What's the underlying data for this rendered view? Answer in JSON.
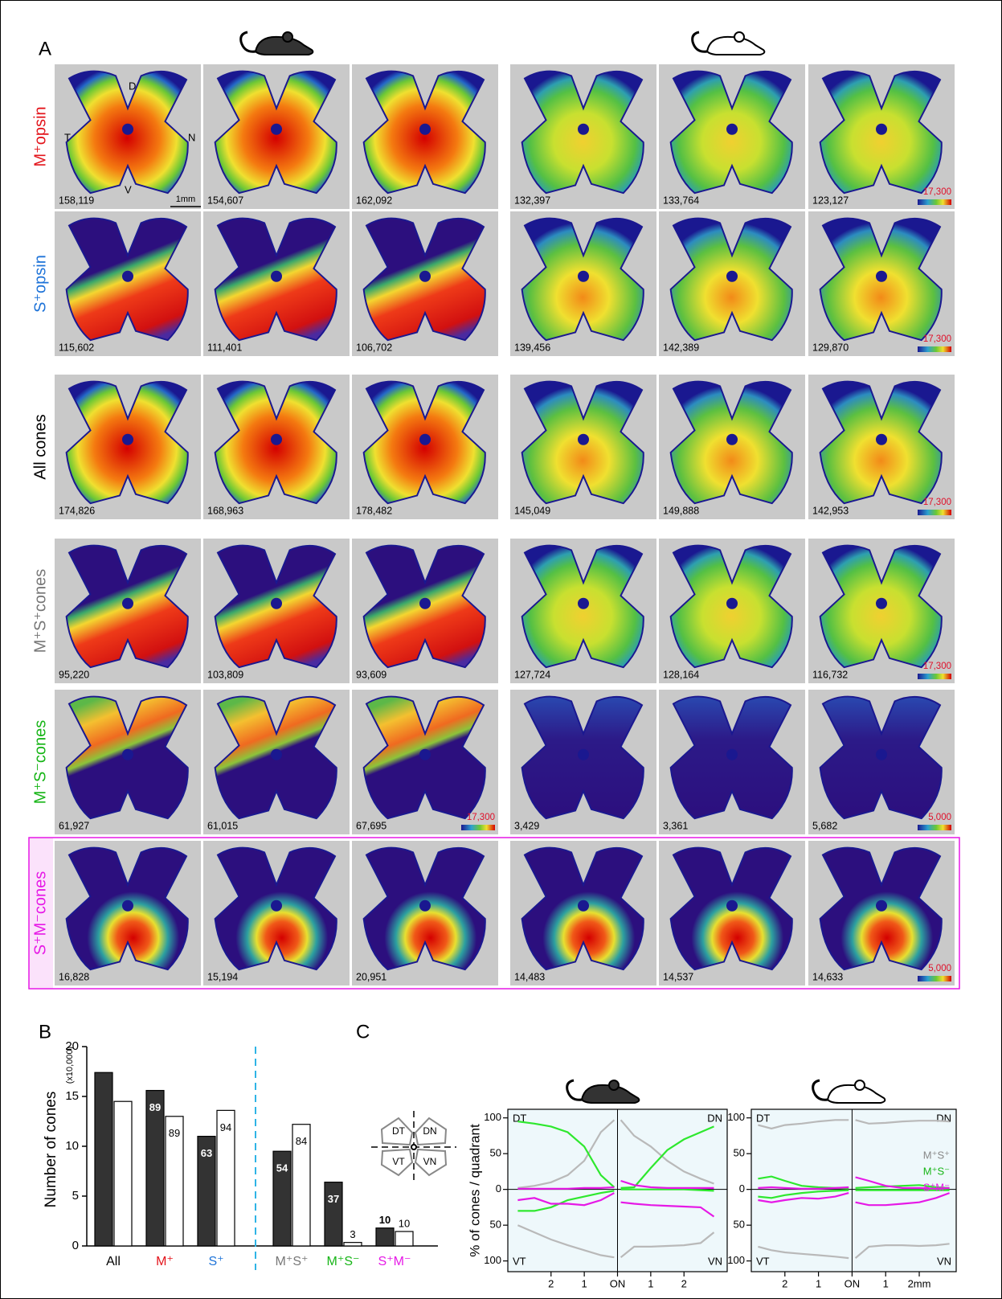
{
  "panel_a": {
    "label": "A",
    "orientation": {
      "d": "D",
      "t": "T",
      "n": "N",
      "v": "V",
      "scale": "1mm"
    },
    "rows": [
      {
        "label": "M⁺opsin",
        "color": "#e3141b",
        "tiles": [
          {
            "count": "158,119"
          },
          {
            "count": "154,607"
          },
          {
            "count": "162,092"
          },
          {
            "count": "132,397"
          },
          {
            "count": "133,764"
          },
          {
            "count": "123,127",
            "scale": "17,300"
          }
        ]
      },
      {
        "label": "S⁺opsin",
        "color": "#1e73d8",
        "tiles": [
          {
            "count": "115,602"
          },
          {
            "count": "111,401"
          },
          {
            "count": "106,702"
          },
          {
            "count": "139,456"
          },
          {
            "count": "142,389"
          },
          {
            "count": "129,870",
            "scale": "17,300"
          }
        ]
      },
      {
        "label": "All cones",
        "color": "#000000",
        "tiles": [
          {
            "count": "174,826"
          },
          {
            "count": "168,963"
          },
          {
            "count": "178,482"
          },
          {
            "count": "145,049"
          },
          {
            "count": "149,888"
          },
          {
            "count": "142,953",
            "scale": "17,300"
          }
        ]
      },
      {
        "label": "M⁺S⁺cones",
        "color": "#777777",
        "tiles": [
          {
            "count": "95,220"
          },
          {
            "count": "103,809"
          },
          {
            "count": "93,609"
          },
          {
            "count": "127,724"
          },
          {
            "count": "128,164"
          },
          {
            "count": "116,732",
            "scale": "17,300"
          }
        ]
      },
      {
        "label": "M⁺S⁻cones",
        "color": "#17b517",
        "tiles": [
          {
            "count": "61,927"
          },
          {
            "count": "61,015"
          },
          {
            "count": "67,695",
            "scale": "17,300"
          },
          {
            "count": "3,429"
          },
          {
            "count": "3,361"
          },
          {
            "count": "5,682",
            "scale": "5,000"
          }
        ]
      },
      {
        "label": "S⁺M⁻cones",
        "color": "#e619e6",
        "tiles": [
          {
            "count": "16,828"
          },
          {
            "count": "15,194"
          },
          {
            "count": "20,951"
          },
          {
            "count": "14,483"
          },
          {
            "count": "14,537"
          },
          {
            "count": "14,633",
            "scale": "5,000"
          }
        ]
      }
    ]
  },
  "panel_b_label": "B",
  "panel_c_label": "C",
  "quadrant_diagram": [
    "DT",
    "DN",
    "VT",
    "VN"
  ],
  "chart_data": [
    {
      "type": "bar",
      "ylabel": "Number of cones",
      "ylabel_unit": "(x10,000)",
      "categories": [
        "All",
        "M⁺",
        "S⁺",
        "M⁺S⁺",
        "M⁺S⁻",
        "S⁺M⁻"
      ],
      "category_colors": [
        "#000000",
        "#e3141b",
        "#1e73d8",
        "#777777",
        "#17b517",
        "#e619e6"
      ],
      "ylim": [
        0,
        20
      ],
      "yticks": [
        0,
        5,
        10,
        15,
        20
      ],
      "series": [
        {
          "color": "#333333",
          "values": [
            17.4,
            15.6,
            11.0,
            9.5,
            6.4,
            1.8
          ],
          "percent_labels": [
            null,
            "89",
            "63",
            "54",
            "37",
            "10"
          ]
        },
        {
          "color": "#ffffff",
          "values": [
            14.5,
            13.0,
            13.6,
            12.2,
            0.35,
            1.45
          ],
          "percent_labels": [
            null,
            "89",
            "94",
            "84",
            "3",
            "10"
          ]
        }
      ]
    },
    {
      "type": "line",
      "ylabel": "% of cones / quadrant",
      "corner_labels": [
        "DT",
        "DN",
        "VT",
        "VN"
      ],
      "xlim": [
        -3.3,
        3.3
      ],
      "ylim": [
        -115,
        112
      ],
      "xticks": [
        {
          "value": -2,
          "label": "2"
        },
        {
          "value": -1,
          "label": "1"
        },
        {
          "value": 0,
          "label": "ON"
        },
        1,
        2
      ],
      "yticks": [
        {
          "value": -100,
          "label": "100"
        },
        {
          "value": -50,
          "label": "50"
        },
        0,
        50,
        100
      ],
      "series": [
        {
          "color": "#b9b9b9",
          "x": [
            -3.0,
            -2.5,
            -2,
            -1.5,
            -1,
            -0.5,
            -0.1
          ],
          "values": [
            2,
            5,
            10,
            20,
            40,
            80,
            97
          ]
        },
        {
          "color": "#b9b9b9",
          "x": [
            -3.0,
            -2.5,
            -2,
            -1.5,
            -1,
            -0.5,
            -0.1
          ],
          "values": [
            -50,
            -60,
            -70,
            -78,
            -85,
            -92,
            -95
          ]
        },
        {
          "color": "#b9b9b9",
          "x": [
            0.1,
            0.5,
            1,
            1.5,
            2,
            2.5,
            2.9
          ],
          "values": [
            97,
            75,
            60,
            40,
            25,
            15,
            8
          ]
        },
        {
          "color": "#b9b9b9",
          "x": [
            0.1,
            0.5,
            1,
            1.5,
            2,
            2.5,
            2.9
          ],
          "values": [
            -95,
            -80,
            -80,
            -79,
            -78,
            -75,
            -60
          ]
        },
        {
          "color": "#2ee82e",
          "x": [
            -3.0,
            -2.5,
            -2,
            -1.5,
            -1,
            -0.5,
            -0.1
          ],
          "values": [
            95,
            92,
            88,
            80,
            60,
            20,
            3
          ]
        },
        {
          "color": "#2ee82e",
          "x": [
            -3.0,
            -2.5,
            -2,
            -1.5,
            -1,
            -0.5,
            -0.1
          ],
          "values": [
            -30,
            -30,
            -25,
            -15,
            -10,
            -5,
            -2
          ]
        },
        {
          "color": "#2ee82e",
          "x": [
            0.1,
            0.5,
            1,
            1.5,
            2,
            2.5,
            2.9
          ],
          "values": [
            2,
            3,
            30,
            55,
            70,
            80,
            88
          ]
        },
        {
          "color": "#2ee82e",
          "x": [
            0.1,
            0.5,
            1,
            1.5,
            2,
            2.5,
            2.9
          ],
          "values": [
            0,
            0,
            0,
            0,
            0,
            -1,
            -2
          ]
        },
        {
          "color": "#e619e6",
          "x": [
            -3.0,
            -2.5,
            -2,
            -1.5,
            -1,
            -0.5,
            -0.1
          ],
          "values": [
            1,
            1,
            1,
            1,
            2,
            2,
            3
          ]
        },
        {
          "color": "#e619e6",
          "x": [
            -3.0,
            -2.5,
            -2,
            -1.5,
            -1,
            -0.5,
            -0.1
          ],
          "values": [
            -15,
            -12,
            -20,
            -20,
            -22,
            -15,
            -5
          ]
        },
        {
          "color": "#e619e6",
          "x": [
            0.1,
            0.5,
            1,
            1.5,
            2,
            2.5,
            2.9
          ],
          "values": [
            12,
            6,
            3,
            2,
            2,
            2,
            2
          ]
        },
        {
          "color": "#e619e6",
          "x": [
            0.1,
            0.5,
            1,
            1.5,
            2,
            2.5,
            2.9
          ],
          "values": [
            -18,
            -20,
            -22,
            -23,
            -24,
            -25,
            -38
          ]
        }
      ]
    },
    {
      "type": "line",
      "corner_labels": [
        "DT",
        "DN",
        "VT",
        "VN"
      ],
      "xlim": [
        -3.0,
        3.1
      ],
      "ylim": [
        -115,
        112
      ],
      "xticks": [
        {
          "value": -2,
          "label": "2"
        },
        {
          "value": -1,
          "label": "1"
        },
        {
          "value": 0,
          "label": "ON"
        },
        1,
        {
          "value": 2,
          "label": "2mm"
        }
      ],
      "yticks": [
        {
          "value": -100,
          "label": "100"
        },
        {
          "value": -50,
          "label": "50"
        },
        0,
        50,
        100
      ],
      "legend": [
        {
          "label": "M⁺S⁺",
          "color": "#888888"
        },
        {
          "label": "M⁺S⁻",
          "color": "#17b517"
        },
        {
          "label": "S⁺M⁻",
          "color": "#e619e6"
        }
      ],
      "series": [
        {
          "color": "#b9b9b9",
          "x": [
            -2.8,
            -2.4,
            -2,
            -1.5,
            -1,
            -0.5,
            -0.1
          ],
          "values": [
            90,
            85,
            90,
            92,
            95,
            97,
            97
          ]
        },
        {
          "color": "#b9b9b9",
          "x": [
            -2.8,
            -2.4,
            -2,
            -1.5,
            -1,
            -0.5,
            -0.1
          ],
          "values": [
            -80,
            -85,
            -88,
            -90,
            -92,
            -94,
            -96
          ]
        },
        {
          "color": "#b9b9b9",
          "x": [
            0.1,
            0.5,
            1,
            1.5,
            2,
            2.5,
            2.9
          ],
          "values": [
            97,
            92,
            93,
            95,
            96,
            96,
            95
          ]
        },
        {
          "color": "#b9b9b9",
          "x": [
            0.1,
            0.5,
            1,
            1.5,
            2,
            2.5,
            2.9
          ],
          "values": [
            -96,
            -80,
            -78,
            -78,
            -79,
            -78,
            -76
          ]
        },
        {
          "color": "#2ee82e",
          "x": [
            -2.8,
            -2.4,
            -2,
            -1.5,
            -1,
            -0.5,
            -0.1
          ],
          "values": [
            15,
            18,
            12,
            5,
            3,
            2,
            2
          ]
        },
        {
          "color": "#2ee82e",
          "x": [
            -2.8,
            -2.4,
            -2,
            -1.5,
            -1,
            -0.5,
            -0.1
          ],
          "values": [
            -10,
            -12,
            -8,
            -5,
            -3,
            -2,
            -1
          ]
        },
        {
          "color": "#2ee82e",
          "x": [
            0.1,
            0.5,
            1,
            1.5,
            2,
            2.5,
            2.9
          ],
          "values": [
            2,
            3,
            4,
            5,
            6,
            3,
            2
          ]
        },
        {
          "color": "#2ee82e",
          "x": [
            0.1,
            0.5,
            1,
            1.5,
            2,
            2.5,
            2.9
          ],
          "values": [
            -1,
            -1,
            -1,
            -1,
            -1,
            -1,
            -1
          ]
        },
        {
          "color": "#e619e6",
          "x": [
            -2.8,
            -2.4,
            -2,
            -1.5,
            -1,
            -0.5,
            -0.1
          ],
          "values": [
            2,
            3,
            2,
            1,
            1,
            2,
            3
          ]
        },
        {
          "color": "#e619e6",
          "x": [
            -2.8,
            -2.4,
            -2,
            -1.5,
            -1,
            -0.5,
            -0.1
          ],
          "values": [
            -15,
            -18,
            -15,
            -12,
            -13,
            -10,
            -5
          ]
        },
        {
          "color": "#e619e6",
          "x": [
            0.1,
            0.5,
            1,
            1.5,
            2,
            2.5,
            2.9
          ],
          "values": [
            17,
            12,
            5,
            2,
            2,
            1,
            2
          ]
        },
        {
          "color": "#e619e6",
          "x": [
            0.1,
            0.5,
            1,
            1.5,
            2,
            2.5,
            2.9
          ],
          "values": [
            -18,
            -22,
            -22,
            -20,
            -18,
            -12,
            -5
          ]
        }
      ]
    }
  ]
}
